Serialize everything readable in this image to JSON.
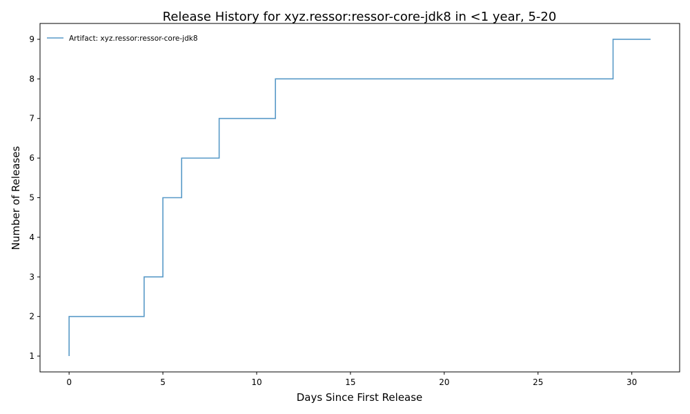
{
  "chart_data": {
    "type": "line",
    "step": "post",
    "title": "Release History for xyz.ressor:ressor-core-jdk8 in <1 year, 5-20",
    "xlabel": "Days Since First Release",
    "ylabel": "Number of Releases",
    "xlim": [
      -1.55,
      32.55
    ],
    "ylim": [
      0.6,
      9.4
    ],
    "xticks": [
      0,
      5,
      10,
      15,
      20,
      25,
      30
    ],
    "yticks": [
      1,
      2,
      3,
      4,
      5,
      6,
      7,
      8,
      9
    ],
    "grid": false,
    "legend_position": "top-left",
    "series": [
      {
        "name": "Artifact: xyz.ressor:ressor-core-jdk8",
        "color": "#1f77b4",
        "x": [
          0,
          0,
          4,
          5,
          5,
          6,
          8,
          11,
          29,
          31
        ],
        "y": [
          1,
          2,
          3,
          4,
          5,
          6,
          7,
          8,
          9,
          9
        ]
      }
    ]
  }
}
